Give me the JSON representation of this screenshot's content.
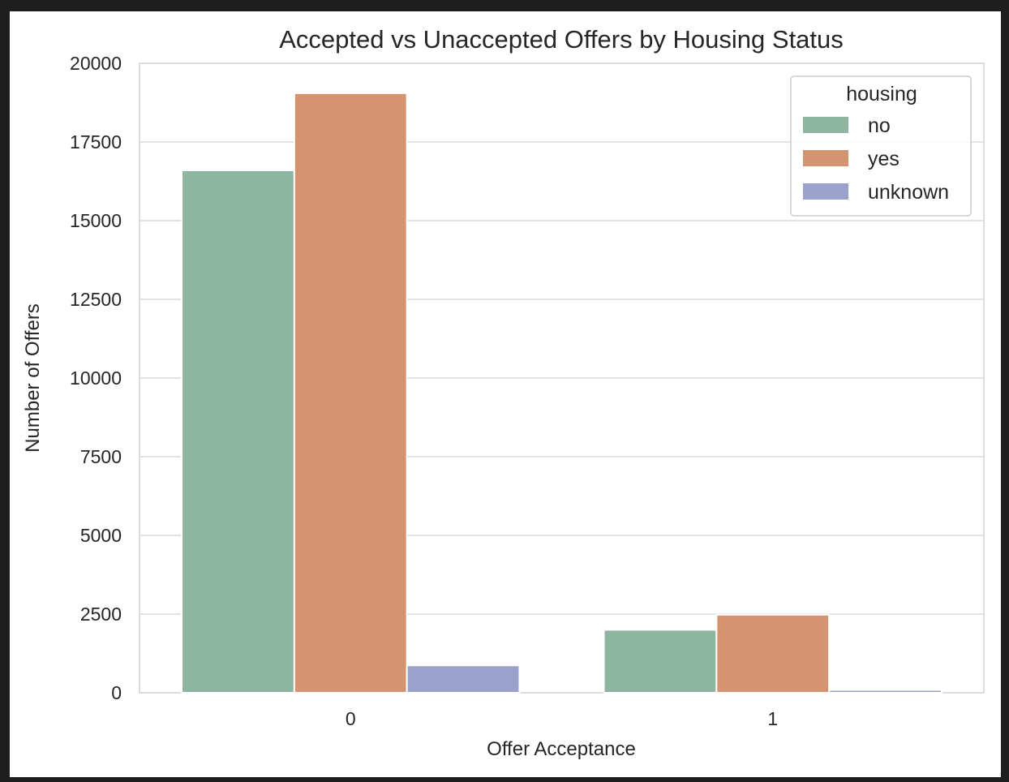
{
  "chart_data": {
    "type": "bar",
    "title": "Accepted vs Unaccepted Offers by Housing Status",
    "xlabel": "Offer Acceptance",
    "ylabel": "Number of Offers",
    "categories": [
      "0",
      "1"
    ],
    "ylim": [
      0,
      20000
    ],
    "yticks": [
      0,
      2500,
      5000,
      7500,
      10000,
      12500,
      15000,
      17500,
      20000
    ],
    "ytick_labels": [
      "0",
      "2500",
      "5000",
      "7500",
      "10000",
      "12500",
      "15000",
      "17500",
      "20000"
    ],
    "grid": true,
    "legend": {
      "title": "housing",
      "placement": "top-right"
    },
    "series": [
      {
        "name": "no",
        "color": "#8db59f",
        "values": [
          16600,
          2000
        ]
      },
      {
        "name": "yes",
        "color": "#d4946f",
        "values": [
          19050,
          2480
        ]
      },
      {
        "name": "unknown",
        "color": "#9aa2cb",
        "values": [
          870,
          90
        ]
      }
    ]
  }
}
